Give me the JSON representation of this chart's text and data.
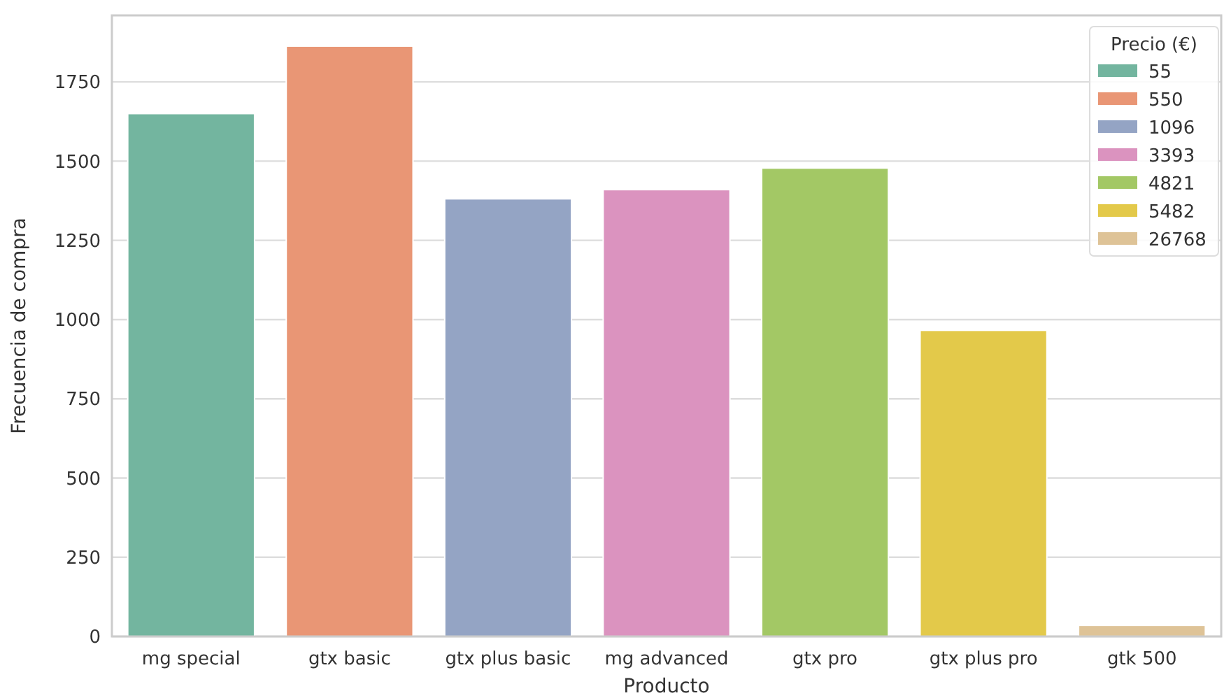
{
  "chart_data": {
    "type": "bar",
    "xlabel": "Producto",
    "ylabel": "Frecuencia de compra",
    "legend_title": "Precio (€)",
    "categories": [
      "mg special",
      "gtx basic",
      "gtx plus basic",
      "mg advanced",
      "gtx pro",
      "gtx plus pro",
      "gtk 500"
    ],
    "series": [
      {
        "name": "55",
        "color": "#73b59f",
        "values": [
          1650,
          null,
          null,
          null,
          null,
          null,
          null
        ]
      },
      {
        "name": "550",
        "color": "#e99675",
        "values": [
          null,
          1863,
          null,
          null,
          null,
          null,
          null
        ]
      },
      {
        "name": "1096",
        "color": "#94a4c4",
        "values": [
          null,
          null,
          1381,
          null,
          null,
          null,
          null
        ]
      },
      {
        "name": "3393",
        "color": "#db93bf",
        "values": [
          null,
          null,
          null,
          1410,
          null,
          null,
          null
        ]
      },
      {
        "name": "4821",
        "color": "#a3c865",
        "values": [
          null,
          null,
          null,
          null,
          1478,
          null,
          null
        ]
      },
      {
        "name": "5482",
        "color": "#e3c94a",
        "values": [
          null,
          null,
          null,
          null,
          null,
          966,
          null
        ]
      },
      {
        "name": "26768",
        "color": "#dec397",
        "values": [
          null,
          null,
          null,
          null,
          null,
          null,
          35
        ]
      }
    ],
    "ylim": [
      0,
      1960
    ],
    "yticks": [
      0,
      250,
      500,
      750,
      1000,
      1250,
      1500,
      1750
    ],
    "grid": "y",
    "legend": "top right"
  }
}
